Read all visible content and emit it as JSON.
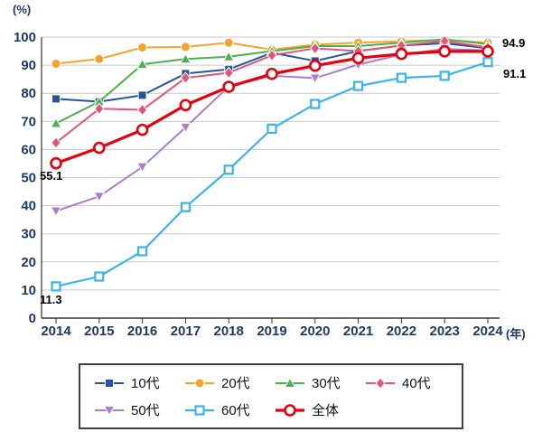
{
  "chart_data": {
    "type": "line",
    "title": "",
    "x": [
      2014,
      2015,
      2016,
      2017,
      2018,
      2019,
      2020,
      2021,
      2022,
      2023,
      2024
    ],
    "x_unit_label": "(年)",
    "ylabel": "(%)",
    "ylim": [
      0,
      100
    ],
    "ytick_step": 10,
    "grid": true,
    "legend_position": "bottom",
    "series": [
      {
        "name": "10代",
        "color": "#27549B",
        "marker": "square",
        "line_width": 2,
        "values": [
          78.0,
          77.0,
          79.3,
          87.0,
          88.5,
          94.4,
          91.5,
          95.0,
          97.0,
          97.8,
          96.0
        ]
      },
      {
        "name": "20代",
        "color": "#F2A42E",
        "marker": "circle",
        "line_width": 2,
        "values": [
          90.5,
          92.2,
          96.3,
          96.5,
          98.0,
          95.5,
          97.3,
          98.0,
          98.5,
          99.0,
          98.0
        ]
      },
      {
        "name": "30代",
        "color": "#4CAF50",
        "marker": "triangle",
        "line_width": 2,
        "values": [
          69.3,
          77.0,
          90.3,
          92.2,
          93.0,
          95.0,
          96.8,
          96.8,
          98.0,
          99.2,
          97.5
        ]
      },
      {
        "name": "40代",
        "color": "#E25579",
        "marker": "diamond",
        "line_width": 2,
        "values": [
          62.4,
          74.5,
          74.1,
          85.5,
          87.3,
          93.5,
          96.0,
          95.0,
          97.0,
          98.6,
          96.3
        ]
      },
      {
        "name": "50代",
        "color": "#A87FC8",
        "marker": "triangle-down",
        "line_width": 2,
        "values": [
          38.1,
          43.3,
          53.8,
          67.9,
          82.4,
          86.2,
          85.4,
          90.2,
          93.8,
          95.8,
          95.2
        ]
      },
      {
        "name": "60代",
        "color": "#3DB4E5",
        "marker": "square-open",
        "line_width": 2.2,
        "values": [
          11.3,
          14.8,
          23.8,
          39.5,
          52.8,
          67.4,
          76.2,
          82.6,
          85.5,
          86.2,
          91.1
        ]
      },
      {
        "name": "全体",
        "color": "#E3000F",
        "marker": "circle-open",
        "line_width": 3.2,
        "values": [
          55.1,
          60.6,
          67.0,
          75.8,
          82.3,
          86.9,
          89.8,
          92.5,
          94.0,
          94.9,
          94.9
        ]
      }
    ],
    "annotations": [
      {
        "series": "全体",
        "x": 2014,
        "value": 55.1,
        "text": "55.1"
      },
      {
        "series": "60代",
        "x": 2014,
        "value": 11.3,
        "text": "11.3"
      },
      {
        "series": "全体",
        "x": 2024,
        "value": 94.9,
        "text": "94.9"
      },
      {
        "series": "60代",
        "x": 2024,
        "value": 91.1,
        "text": "91.1"
      }
    ],
    "colors": {
      "grid": "#c9c9c9",
      "axis": "#333333",
      "tick_label": "#1f3864",
      "annotation": "#000000",
      "legend_border": "#404040"
    }
  }
}
